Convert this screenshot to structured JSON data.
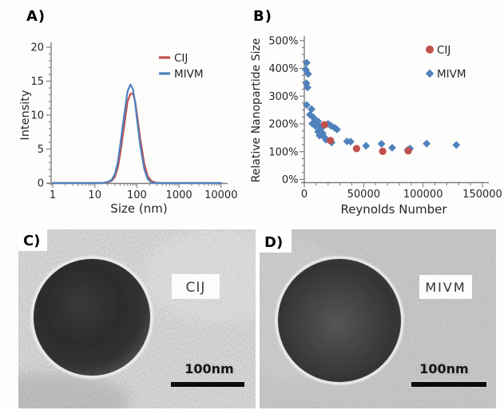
{
  "panels": {
    "a": {
      "label": "A)"
    },
    "b": {
      "label": "B)"
    },
    "c": {
      "label": "C)",
      "annotation": "CIJ",
      "scale_label": "100nm"
    },
    "d": {
      "label": "D)",
      "annotation": "MIVM",
      "scale_label": "100nm"
    }
  },
  "colors": {
    "cij": "#c0504d",
    "mivm": "#4f81bd",
    "axis": "#7f7f7f",
    "tick_text": "#262626",
    "background": "#fdfdfc",
    "tem_c_background": "#a8a8a8",
    "tem_d_background": "#8e8e8e"
  },
  "chart_data": [
    {
      "panel": "A",
      "type": "line",
      "title": "",
      "xlabel": "Size (nm)",
      "ylabel": "Intensity",
      "x_scale": "log",
      "xlim": [
        1,
        10000
      ],
      "ylim": [
        0,
        20
      ],
      "x_ticks": [
        1,
        10,
        100,
        1000,
        10000
      ],
      "y_ticks": [
        0,
        5,
        10,
        15,
        20
      ],
      "grid": false,
      "legend_position": "top-right",
      "series": [
        {
          "name": "CIJ",
          "color": "#c0504d",
          "x": [
            1,
            15,
            20,
            25,
            30,
            35,
            40,
            50,
            60,
            70,
            80,
            90,
            100,
            120,
            150,
            180,
            220,
            280,
            350,
            10000
          ],
          "y": [
            0,
            0,
            0.1,
            0.3,
            0.9,
            2.2,
            4.2,
            8.5,
            12,
            13.1,
            13.2,
            12.2,
            10.2,
            6.5,
            2.8,
            1,
            0.3,
            0.05,
            0,
            0
          ]
        },
        {
          "name": "MIVM",
          "color": "#4f81bd",
          "x": [
            1,
            15,
            20,
            25,
            30,
            35,
            40,
            50,
            60,
            70,
            80,
            90,
            100,
            120,
            150,
            180,
            220,
            280,
            350,
            10000
          ],
          "y": [
            0,
            0,
            0.15,
            0.45,
            1.3,
            3,
            5.5,
            10,
            13.5,
            14.5,
            13.9,
            12,
            9.5,
            5.5,
            2,
            0.6,
            0.1,
            0,
            0,
            0
          ]
        }
      ]
    },
    {
      "panel": "B",
      "type": "scatter",
      "title": "",
      "xlabel": "Reynolds Number",
      "ylabel": "Relative Nanopartide Size",
      "xlim": [
        0,
        150000
      ],
      "ylim_pct": [
        0,
        500
      ],
      "x_ticks": [
        0,
        50000,
        100000,
        150000
      ],
      "y_ticks": [
        "0%",
        "100%",
        "200%",
        "300%",
        "400%",
        "500%"
      ],
      "grid": false,
      "legend_position": "top-right",
      "series": [
        {
          "name": "CIJ",
          "marker": "circle",
          "color": "#c0504d",
          "points": [
            [
              17000,
              197
            ],
            [
              22000,
              140
            ],
            [
              44000,
              111
            ],
            [
              66000,
              101
            ],
            [
              87500,
              103
            ]
          ]
        },
        {
          "name": "MIVM",
          "marker": "diamond",
          "color": "#4f81bd",
          "points": [
            [
              1300,
              395
            ],
            [
              2000,
              420
            ],
            [
              1800,
              346
            ],
            [
              3200,
              380
            ],
            [
              2700,
              331
            ],
            [
              2000,
              268
            ],
            [
              4700,
              233
            ],
            [
              6050,
              253
            ],
            [
              6700,
              201
            ],
            [
              7400,
              224
            ],
            [
              9000,
              215
            ],
            [
              9400,
              192
            ],
            [
              11600,
              209
            ],
            [
              12800,
              192
            ],
            [
              11600,
              172
            ],
            [
              14100,
              183
            ],
            [
              12800,
              158
            ],
            [
              15500,
              166
            ],
            [
              16800,
              152
            ],
            [
              18200,
              143
            ],
            [
              20000,
              200
            ],
            [
              22500,
              193
            ],
            [
              25500,
              186
            ],
            [
              27500,
              180
            ],
            [
              23000,
              133
            ],
            [
              36000,
              137
            ],
            [
              39000,
              136
            ],
            [
              52000,
              121
            ],
            [
              65000,
              128
            ],
            [
              74000,
              114
            ],
            [
              87000,
              106
            ],
            [
              89000,
              111
            ],
            [
              103000,
              129
            ],
            [
              128000,
              124
            ]
          ]
        }
      ]
    }
  ]
}
